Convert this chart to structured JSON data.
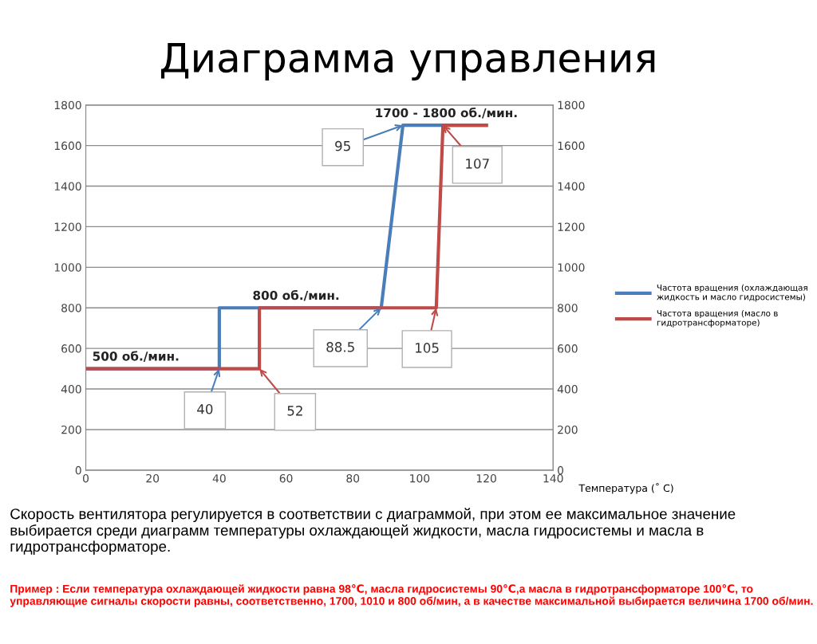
{
  "chart_data": {
    "type": "line",
    "title": "Диаграмма управления",
    "xlabel": "Температура (˚ C)",
    "series": [
      {
        "name": "Частота вращения (охлаждающая жидкость и масло гидросистемы)",
        "color": "#4a7ebb",
        "x": [
          0,
          40,
          40,
          88.5,
          95,
          120
        ],
        "values": [
          500,
          500,
          800,
          800,
          1700,
          1700
        ]
      },
      {
        "name": "Частота вращения (масло в гидротрансформаторе)",
        "color": "#be4b48",
        "x": [
          0,
          52,
          52,
          105,
          107,
          120
        ],
        "values": [
          500,
          500,
          800,
          800,
          1700,
          1700
        ]
      }
    ],
    "xlim": [
      0,
      140
    ],
    "xticks": [
      0,
      20,
      40,
      60,
      80,
      100,
      120,
      140
    ],
    "ylim": [
      0,
      1800
    ],
    "yticks": [
      0,
      200,
      400,
      600,
      800,
      1000,
      1200,
      1400,
      1600,
      1800
    ],
    "y2lim": [
      0,
      1800
    ],
    "y2ticks": [
      0,
      200,
      400,
      600,
      800,
      1000,
      1200,
      1400,
      1600,
      1800
    ],
    "grid": "y",
    "legend": "right",
    "marker": "none",
    "line_style": "solid",
    "annotations": [
      {
        "text": "40",
        "x": 40,
        "y": 500
      },
      {
        "text": "52",
        "x": 52,
        "y": 500
      },
      {
        "text": "88.5",
        "x": 88.5,
        "y": 800
      },
      {
        "text": "105",
        "x": 105,
        "y": 800
      },
      {
        "text": "95",
        "x": 95,
        "y": 1700
      },
      {
        "text": "107",
        "x": 107,
        "y": 1700
      },
      {
        "text": "500 об./мин.",
        "x": 15,
        "y": 500
      },
      {
        "text": "800 об./мин.",
        "x": 63,
        "y": 800
      },
      {
        "text": "1700 - 1800 об./мин.",
        "x": 108,
        "y": 1700
      },
      "Скорость вентилятора регулируется в соответствии с диаграммой, при этом ее максимальное значение выбирается среди диаграмм температуры охлаждающей жидкости, масла гидросистемы и масла в гидротрансформаторе.",
      "Пример : Если температура охлаждающей жидкости равна 98℃, масла гидросистемы 90℃,а масла в гидротрансформаторе 100℃, то управляющие сигналы скорости равны, соответственно, 1700, 1010 и 800 об/мин, а в качестве максимальной выбирается величина 1700 об/мин."
    ]
  }
}
